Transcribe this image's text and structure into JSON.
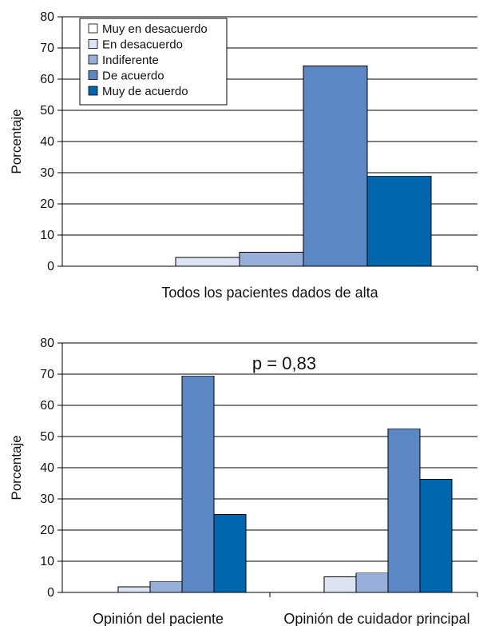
{
  "chart_data": [
    {
      "type": "bar",
      "ylabel": "Porcentaje",
      "ylim": [
        0,
        80
      ],
      "yticks": [
        "0",
        "10",
        "20",
        "30",
        "40",
        "50",
        "60",
        "70",
        "80"
      ],
      "categories": [
        "Todos los pacientes dados de alta"
      ],
      "grid": true,
      "legend": "top-left",
      "series": [
        {
          "name": "Muy en desacuerdo",
          "color": "#ffffff",
          "values": [
            0
          ]
        },
        {
          "name": "En desacuerdo",
          "color": "#dce3f2",
          "values": [
            2.8
          ]
        },
        {
          "name": "Indiferente",
          "color": "#98afd9",
          "values": [
            4.5
          ]
        },
        {
          "name": "De acuerdo",
          "color": "#5b87c5",
          "values": [
            64.2
          ]
        },
        {
          "name": "Muy de acuerdo",
          "color": "#0066ae",
          "values": [
            28.9
          ]
        }
      ]
    },
    {
      "type": "bar",
      "ylabel": "Porcentaje",
      "ylim": [
        0,
        80
      ],
      "yticks": [
        "0",
        "10",
        "20",
        "30",
        "40",
        "50",
        "60",
        "70",
        "80"
      ],
      "categories": [
        "Opinión del paciente",
        "Opinión de cuidador principal"
      ],
      "annotation": "p = 0,83",
      "grid": true,
      "series": [
        {
          "name": "Muy en desacuerdo",
          "color": "#ffffff",
          "values": [
            0,
            0
          ]
        },
        {
          "name": "En desacuerdo",
          "color": "#dce3f2",
          "values": [
            1.8,
            5.0
          ]
        },
        {
          "name": "Indiferente",
          "color": "#98afd9",
          "values": [
            3.5,
            6.2
          ]
        },
        {
          "name": "De acuerdo",
          "color": "#5b87c5",
          "values": [
            69.4,
            52.5
          ]
        },
        {
          "name": "Muy de acuerdo",
          "color": "#0066ae",
          "values": [
            25.0,
            36.3
          ]
        }
      ]
    }
  ]
}
